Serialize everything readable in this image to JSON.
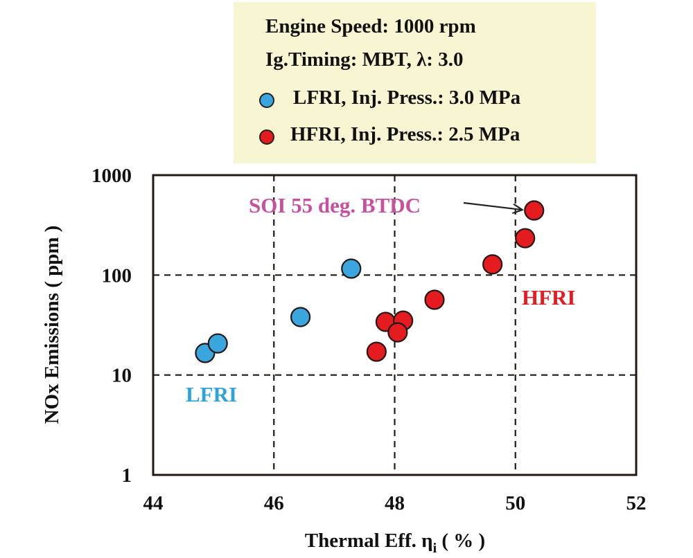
{
  "chart_data": {
    "type": "scatter",
    "title": "",
    "xlabel": "Thermal Eff. η",
    "xlabel_subscript": "i",
    "xlabel_suffix": " ( % )",
    "ylabel": "NOx Emissions ( ppm )",
    "xlim": [
      44,
      52
    ],
    "ylim": [
      1,
      1000
    ],
    "yscale": "log",
    "xticks": [
      44,
      46,
      48,
      50,
      52
    ],
    "xtick_labels": [
      "44",
      "46",
      "48",
      "50",
      "52"
    ],
    "yticks": [
      1,
      10,
      100,
      1000
    ],
    "ytick_labels": [
      "1",
      "10",
      "100",
      "1000"
    ],
    "grid": true,
    "legend_position": "top-center-outside",
    "legend_header": [
      "Engine Speed: 1000 rpm",
      "Ig.Timing: MBT, λ: 3.0"
    ],
    "series": [
      {
        "name": "LFRI, Inj. Press.: 3.0 MPa",
        "color": "#3aa6dd",
        "points": [
          {
            "x": 44.86,
            "y": 16.6
          },
          {
            "x": 45.07,
            "y": 20.7
          },
          {
            "x": 46.44,
            "y": 38
          },
          {
            "x": 47.28,
            "y": 116
          }
        ]
      },
      {
        "name": "HFRI, Inj. Press.: 2.5 MPa",
        "color": "#e41b1f",
        "points": [
          {
            "x": 47.7,
            "y": 17.1
          },
          {
            "x": 47.85,
            "y": 34
          },
          {
            "x": 48.14,
            "y": 35
          },
          {
            "x": 48.05,
            "y": 26.7
          },
          {
            "x": 48.66,
            "y": 56.6
          },
          {
            "x": 49.62,
            "y": 128
          },
          {
            "x": 50.16,
            "y": 234
          },
          {
            "x": 50.31,
            "y": 443
          }
        ]
      }
    ],
    "annotations": [
      {
        "text": "SOI 55 deg. BTDC",
        "color": "#c9509f",
        "arrow_to": {
          "x": 50.31,
          "y": 443
        }
      },
      {
        "text": "LFRI",
        "color": "#2ea3dc"
      },
      {
        "text": "HFRI",
        "color": "#e41b1f"
      }
    ]
  }
}
